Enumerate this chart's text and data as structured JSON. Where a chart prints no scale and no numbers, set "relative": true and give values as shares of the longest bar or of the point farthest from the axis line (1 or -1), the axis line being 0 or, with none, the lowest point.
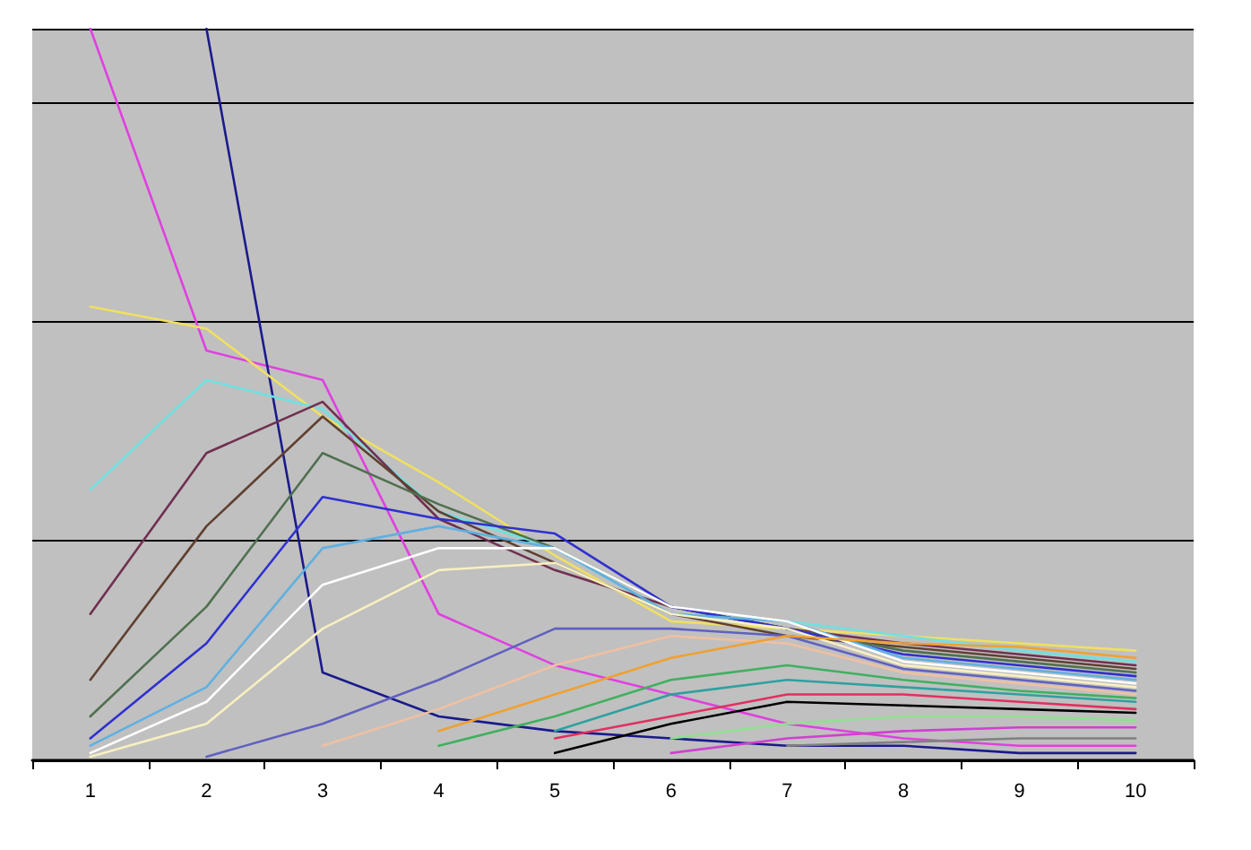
{
  "chart_data": {
    "type": "line",
    "relative": true,
    "grid": "y",
    "marker": "none",
    "line_style": "solid",
    "categories": [
      "1",
      "2",
      "3",
      "4",
      "5",
      "6",
      "7",
      "8",
      "9",
      "10"
    ],
    "series": [
      {
        "color": "#e040e0",
        "values": [
          1.0,
          0.56,
          0.52,
          0.2,
          0.13,
          0.09,
          0.05,
          0.03,
          0.02,
          0.02
        ]
      },
      {
        "color": "#1a1a8c",
        "values": [
          null,
          1.0,
          0.12,
          0.06,
          0.04,
          0.03,
          0.02,
          0.02,
          0.01,
          0.01
        ]
      },
      {
        "color": "#f0e060",
        "values": [
          0.62,
          0.59,
          0.47,
          0.38,
          0.28,
          0.19,
          0.18,
          0.17,
          0.16,
          0.15
        ]
      },
      {
        "color": "#70e0e0",
        "values": [
          0.37,
          0.52,
          0.48,
          0.34,
          0.29,
          0.2,
          0.19,
          0.17,
          0.15,
          0.135
        ]
      },
      {
        "color": "#703050",
        "values": [
          0.2,
          0.42,
          0.49,
          0.33,
          0.26,
          0.21,
          0.18,
          0.16,
          0.145,
          0.13
        ]
      },
      {
        "color": "#604030",
        "values": [
          0.11,
          0.32,
          0.47,
          0.34,
          0.27,
          0.2,
          0.17,
          0.155,
          0.14,
          0.125
        ]
      },
      {
        "color": "#507050",
        "values": [
          0.06,
          0.21,
          0.42,
          0.35,
          0.29,
          0.21,
          0.18,
          0.15,
          0.135,
          0.12
        ]
      },
      {
        "color": "#3030d0",
        "values": [
          0.03,
          0.16,
          0.36,
          0.33,
          0.31,
          0.21,
          0.18,
          0.145,
          0.13,
          0.115
        ]
      },
      {
        "color": "#60b0e0",
        "values": [
          0.02,
          0.1,
          0.29,
          0.32,
          0.29,
          0.2,
          0.19,
          0.14,
          0.125,
          0.11
        ]
      },
      {
        "color": "#ffffff",
        "values": [
          0.01,
          0.08,
          0.24,
          0.29,
          0.29,
          0.21,
          0.19,
          0.135,
          0.12,
          0.105
        ]
      },
      {
        "color": "#f8f0c0",
        "values": [
          0.005,
          0.05,
          0.18,
          0.26,
          0.27,
          0.2,
          0.18,
          0.13,
          0.115,
          0.1
        ]
      },
      {
        "color": "#6060c0",
        "values": [
          null,
          0.005,
          0.05,
          0.11,
          0.18,
          0.18,
          0.17,
          0.125,
          0.11,
          0.095
        ]
      },
      {
        "color": "#f0c0a0",
        "values": [
          null,
          null,
          0.02,
          0.07,
          0.13,
          0.17,
          0.16,
          0.12,
          0.105,
          0.09
        ]
      },
      {
        "color": "#f0a030",
        "values": [
          null,
          null,
          null,
          0.04,
          0.09,
          0.14,
          0.17,
          0.16,
          0.155,
          0.14
        ]
      },
      {
        "color": "#40b060",
        "values": [
          null,
          null,
          null,
          0.02,
          0.06,
          0.11,
          0.13,
          0.11,
          0.095,
          0.085
        ]
      },
      {
        "color": "#30a0a0",
        "values": [
          null,
          null,
          null,
          null,
          0.04,
          0.09,
          0.11,
          0.1,
          0.09,
          0.08
        ]
      },
      {
        "color": "#e03060",
        "values": [
          null,
          null,
          null,
          null,
          0.03,
          0.06,
          0.09,
          0.09,
          0.08,
          0.07
        ]
      },
      {
        "color": "#000000",
        "values": [
          null,
          null,
          null,
          null,
          0.01,
          0.05,
          0.08,
          0.075,
          0.07,
          0.065
        ]
      },
      {
        "color": "#90e090",
        "values": [
          null,
          null,
          null,
          null,
          null,
          0.03,
          0.05,
          0.06,
          0.06,
          0.055
        ]
      },
      {
        "color": "#d040d0",
        "values": [
          null,
          null,
          null,
          null,
          null,
          0.01,
          0.03,
          0.04,
          0.045,
          0.045
        ]
      },
      {
        "color": "#808080",
        "values": [
          null,
          null,
          null,
          null,
          null,
          null,
          0.02,
          0.025,
          0.03,
          0.03
        ]
      }
    ]
  }
}
